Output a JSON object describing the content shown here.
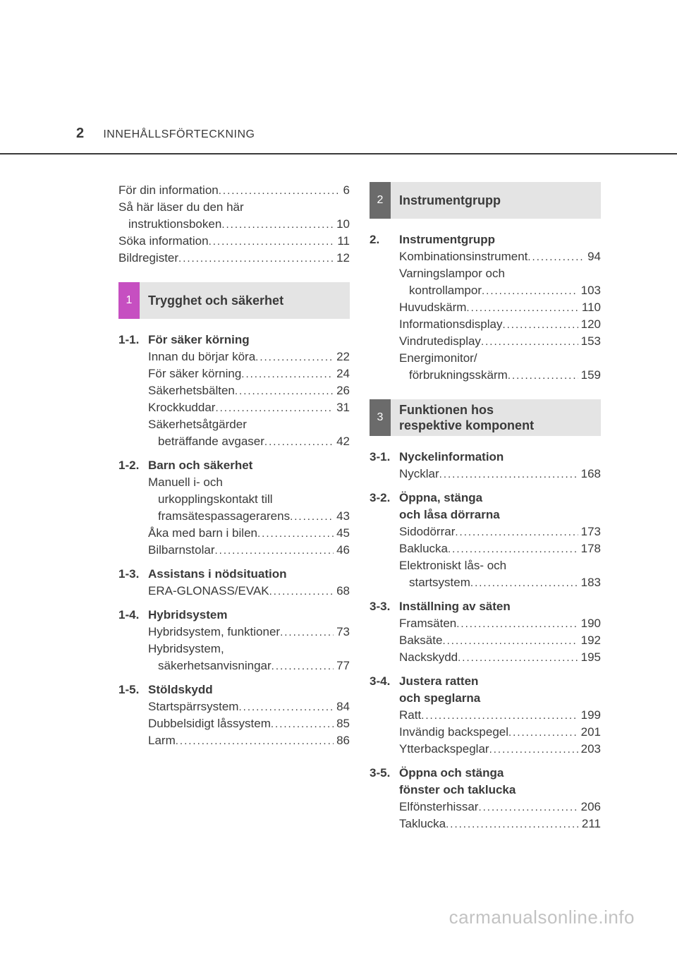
{
  "page": {
    "number": "2",
    "header_label": "INNEHÅLLSFÖRTECKNING"
  },
  "intro": [
    {
      "label": "För din information",
      "page": "6"
    },
    {
      "label": "Så här läser du den här",
      "cont": "instruktionsboken",
      "page": "10"
    },
    {
      "label": "Söka information",
      "page": "11"
    },
    {
      "label": "Bildregister",
      "page": "12"
    }
  ],
  "left": {
    "section": {
      "num": "1",
      "title": "Trygghet och säkerhet"
    },
    "subs": [
      {
        "num": "1-1.",
        "title": "För säker körning",
        "items": [
          {
            "label": "Innan du börjar köra",
            "page": "22"
          },
          {
            "label": "För säker körning",
            "page": "24"
          },
          {
            "label": "Säkerhetsbälten",
            "page": "26"
          },
          {
            "label": "Krockkuddar",
            "page": "31"
          },
          {
            "label": "Säkerhetsåtgärder",
            "cont": "beträffande avgaser",
            "page": "42"
          }
        ]
      },
      {
        "num": "1-2.",
        "title": "Barn och säkerhet",
        "items": [
          {
            "label": "Manuell i- och",
            "cont": "urkopplingskontakt till",
            "cont2": "framsätespassagerarens",
            "page": "43"
          },
          {
            "label": "Åka med barn i bilen",
            "page": "45"
          },
          {
            "label": "Bilbarnstolar",
            "page": "46"
          }
        ]
      },
      {
        "num": "1-3.",
        "title": "Assistans i nödsituation",
        "items": [
          {
            "label": "ERA-GLONASS/EVAK",
            "page": "68"
          }
        ]
      },
      {
        "num": "1-4.",
        "title": "Hybridsystem",
        "items": [
          {
            "label": "Hybridsystem, funktioner",
            "page": "73"
          },
          {
            "label": "Hybridsystem,",
            "cont": "säkerhetsanvisningar",
            "page": "77"
          }
        ]
      },
      {
        "num": "1-5.",
        "title": "Stöldskydd",
        "items": [
          {
            "label": "Startspärrsystem",
            "page": "84"
          },
          {
            "label": "Dubbelsidigt låssystem",
            "page": "85"
          },
          {
            "label": "Larm",
            "page": "86"
          }
        ]
      }
    ]
  },
  "right_a": {
    "section": {
      "num": "2",
      "title": "Instrumentgrupp"
    },
    "subs": [
      {
        "num": "2.",
        "title": "Instrumentgrupp",
        "items": [
          {
            "label": "Kombinationsinstrument",
            "page": "94"
          },
          {
            "label": "Varningslampor och",
            "cont": "kontrollampor",
            "page": "103"
          },
          {
            "label": "Huvudskärm",
            "page": "110"
          },
          {
            "label": "Informationsdisplay",
            "page": "120"
          },
          {
            "label": "Vindrutedisplay",
            "page": "153"
          },
          {
            "label": "Energimonitor/",
            "cont": "förbrukningsskärm",
            "page": "159"
          }
        ]
      }
    ]
  },
  "right_b": {
    "section": {
      "num": "3",
      "title_line1": "Funktionen hos",
      "title_line2": "respektive komponent"
    },
    "subs": [
      {
        "num": "3-1.",
        "title": "Nyckelinformation",
        "items": [
          {
            "label": "Nycklar",
            "page": "168"
          }
        ]
      },
      {
        "num": "3-2.",
        "title_line1": "Öppna, stänga",
        "title_line2": "och låsa dörrarna",
        "items": [
          {
            "label": "Sidodörrar",
            "page": "173"
          },
          {
            "label": "Baklucka",
            "page": "178"
          },
          {
            "label": "Elektroniskt lås- och",
            "cont": "startsystem",
            "page": "183"
          }
        ]
      },
      {
        "num": "3-3.",
        "title": "Inställning av säten",
        "items": [
          {
            "label": "Framsäten",
            "page": "190"
          },
          {
            "label": "Baksäte",
            "page": "192"
          },
          {
            "label": "Nackskydd",
            "page": "195"
          }
        ]
      },
      {
        "num": "3-4.",
        "title_line1": "Justera ratten",
        "title_line2": "och speglarna",
        "items": [
          {
            "label": "Ratt",
            "page": "199"
          },
          {
            "label": "Invändig backspegel",
            "page": "201"
          },
          {
            "label": "Ytterbackspeglar",
            "page": "203"
          }
        ]
      },
      {
        "num": "3-5.",
        "title_line1": "Öppna och stänga",
        "title_line2": "fönster och taklucka",
        "items": [
          {
            "label": "Elfönsterhissar",
            "page": "206"
          },
          {
            "label": "Taklucka",
            "page": "211"
          }
        ]
      }
    ]
  },
  "watermark": "carmanualsonline.info",
  "colors": {
    "text": "#3a3a3a",
    "banner_bg": "#e4e4e4",
    "accent_section1": "#c64fc1",
    "accent_other": "#6b6b6b",
    "watermark": "rgba(120,120,120,0.45)"
  }
}
